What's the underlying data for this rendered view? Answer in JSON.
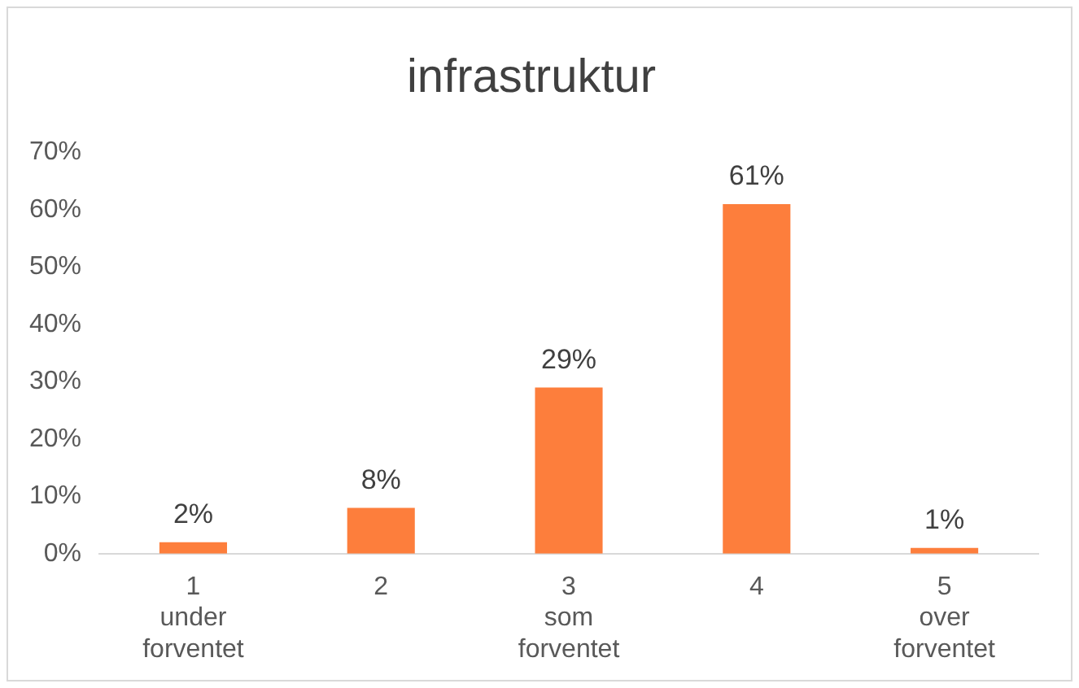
{
  "chart_data": {
    "type": "bar",
    "title": "infrastruktur",
    "categories": [
      "1\nunder\nforventet",
      "2",
      "3\nsom\nforventet",
      "4",
      "5\nover\nforventet"
    ],
    "values": [
      2,
      8,
      29,
      61,
      1
    ],
    "color": "#fd7e3c",
    "value_labels": [
      "2%",
      "8%",
      "29%",
      "61%",
      "1%"
    ],
    "ylim": [
      0,
      70
    ],
    "yticks": [
      {
        "value": 0,
        "label": "0%"
      },
      {
        "value": 10,
        "label": "10%"
      },
      {
        "value": 20,
        "label": "20%"
      },
      {
        "value": 30,
        "label": "30%"
      },
      {
        "value": 40,
        "label": "40%"
      },
      {
        "value": 50,
        "label": "50%"
      },
      {
        "value": 60,
        "label": "60%"
      },
      {
        "value": 70,
        "label": "70%"
      }
    ],
    "grid": false,
    "legend": false
  }
}
